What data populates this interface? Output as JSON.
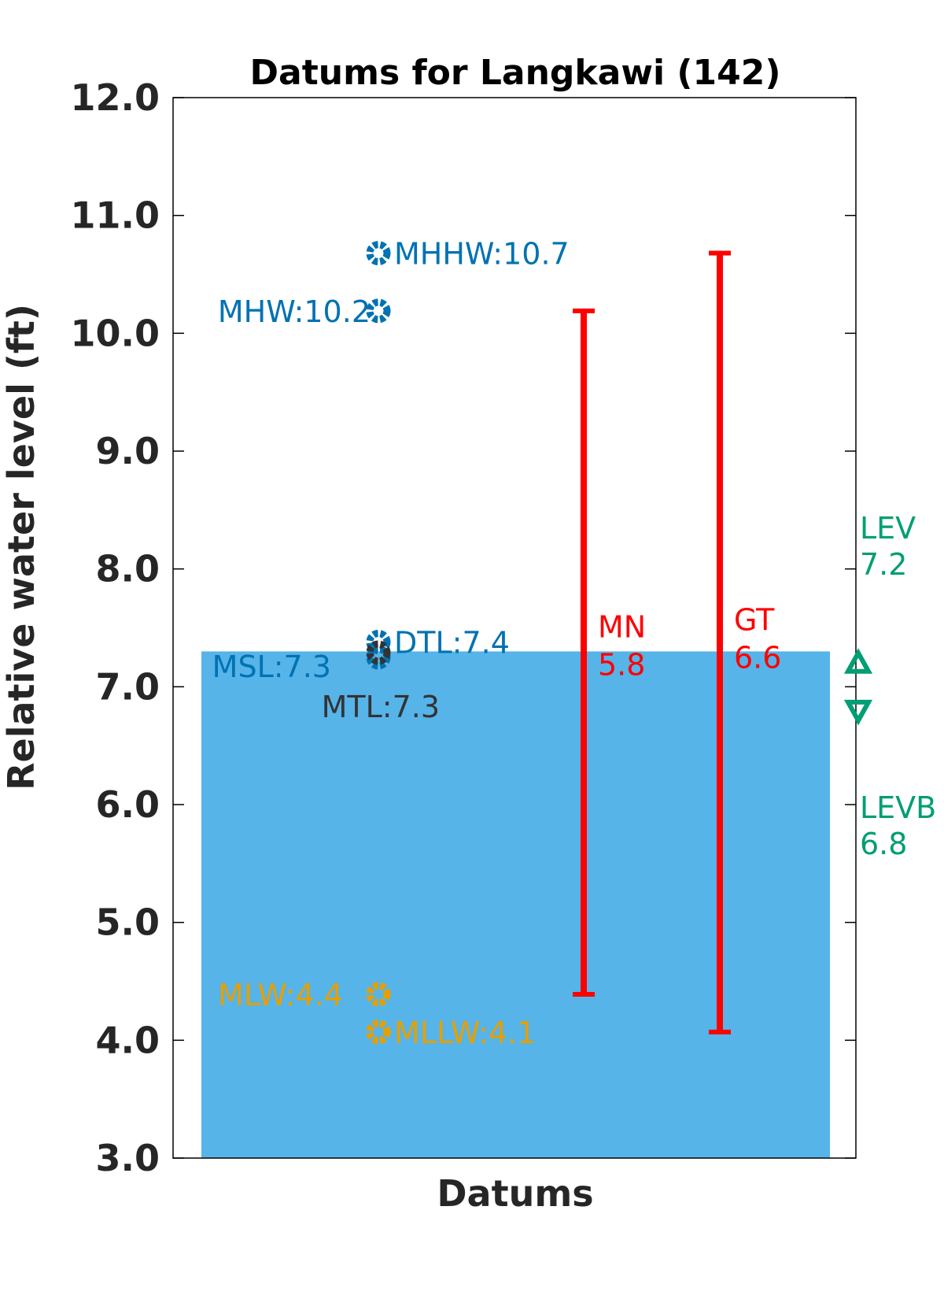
{
  "chart_data": {
    "type": "scatter",
    "title": "Datums for Langkawi (142)",
    "xlabel": "Datums",
    "ylabel": "Relative water level (ft)",
    "ylim": [
      3.0,
      12.0
    ],
    "yticks": [
      "3.0",
      "4.0",
      "5.0",
      "6.0",
      "7.0",
      "8.0",
      "9.0",
      "10.0",
      "11.0",
      "12.0"
    ],
    "background_bar": {
      "value": 7.3,
      "color": "#56b4e9"
    },
    "points": [
      {
        "label": "MHHW:10.7",
        "value": 10.68,
        "color": "#0072b2"
      },
      {
        "label": "MHW:10.2",
        "value": 10.19,
        "color": "#0072b2"
      },
      {
        "label": "DTL:7.4",
        "value": 7.38,
        "color": "#0072b2"
      },
      {
        "label": "MSL:7.3",
        "value": 7.25,
        "color": "#0072b2"
      },
      {
        "label": "MTL:7.3",
        "value": 7.29,
        "color": "#333333"
      },
      {
        "label": "MLW:4.4",
        "value": 4.39,
        "color": "#e69f00"
      },
      {
        "label": "MLLW:4.1",
        "value": 4.07,
        "color": "#e69f00"
      }
    ],
    "ranges": [
      {
        "name": "MN",
        "value": "5.8",
        "low": 4.39,
        "high": 10.19,
        "color": "#ff0000"
      },
      {
        "name": "GT",
        "value": "6.6",
        "low": 4.07,
        "high": 10.68,
        "color": "#ff0000"
      }
    ],
    "extremes": [
      {
        "name": "LEV",
        "value": "7.2",
        "y": 7.2,
        "marker": "triangle-up",
        "color": "#009e73"
      },
      {
        "name": "LEVB",
        "value": "6.8",
        "y": 6.8,
        "marker": "triangle-down",
        "color": "#009e73"
      }
    ]
  }
}
